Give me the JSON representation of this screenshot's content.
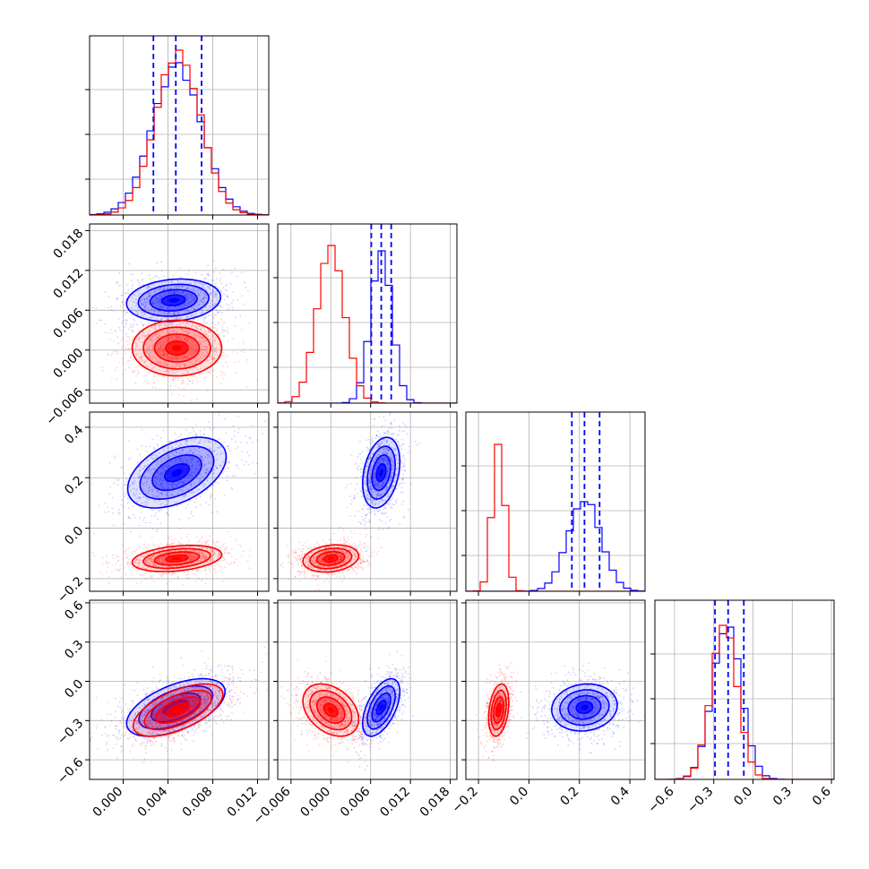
{
  "chart_data": {
    "type": "corner",
    "grid": true,
    "colors": {
      "series_a": "#0000ff",
      "series_b": "#ff0000",
      "quantile_line": "#0000ff"
    },
    "parameters": [
      {
        "range": [
          -0.003,
          0.013
        ],
        "ticks": [
          0.0,
          0.004,
          0.008,
          0.012
        ],
        "tick_labels": [
          "0.000",
          "0.004",
          "0.008",
          "0.012"
        ]
      },
      {
        "range": [
          -0.008,
          0.019
        ],
        "ticks": [
          -0.006,
          0.0,
          0.006,
          0.012,
          0.018
        ],
        "tick_labels": [
          "−0.006",
          "0.000",
          "0.006",
          "0.012",
          "0.018"
        ]
      },
      {
        "range": [
          -0.25,
          0.46
        ],
        "ticks": [
          -0.2,
          0.0,
          0.2,
          0.4
        ],
        "tick_labels": [
          "−0.2",
          "0.0",
          "0.2",
          "0.4"
        ]
      },
      {
        "range": [
          -0.75,
          0.62
        ],
        "ticks": [
          -0.6,
          -0.3,
          0.0,
          0.3,
          0.6
        ],
        "tick_labels": [
          "−0.6",
          "−0.3",
          "0.0",
          "0.3",
          "0.6"
        ]
      }
    ],
    "series": [
      {
        "color": "#0000ff",
        "mean": [
          0.0048,
          0.0076,
          0.22,
          -0.2
        ],
        "std": [
          0.0022,
          0.0016,
          0.065,
          0.11
        ],
        "quantiles": [
          [
            0.0027,
            0.0047,
            0.007
          ],
          [
            0.0061,
            0.0076,
            0.0091
          ],
          [
            0.17,
            0.22,
            0.28
          ],
          [
            -0.29,
            -0.19,
            -0.07
          ]
        ],
        "marginal_peak": [
          0.85,
          0.85,
          0.5,
          0.85
        ]
      },
      {
        "color": "#ff0000",
        "mean": [
          0.0049,
          0.0,
          -0.12,
          -0.22
        ],
        "std": [
          0.002,
          0.0021,
          0.025,
          0.1
        ],
        "marginal_peak": [
          0.92,
          0.88,
          0.82,
          0.86
        ]
      }
    ],
    "pairs": [
      {
        "row": 1,
        "col": 0,
        "series": [
          {
            "cx": 0.0045,
            "cy": 0.0075,
            "sx": 0.0021,
            "sy": 0.0016,
            "rho": 0.15
          },
          {
            "cx": 0.0048,
            "cy": 0.0003,
            "sx": 0.002,
            "sy": 0.0021,
            "rho": 0.0
          }
        ]
      },
      {
        "row": 2,
        "col": 0,
        "series": [
          {
            "cx": 0.0048,
            "cy": 0.22,
            "sx": 0.0022,
            "sy": 0.07,
            "rho": 0.45
          },
          {
            "cx": 0.0048,
            "cy": -0.12,
            "sx": 0.002,
            "sy": 0.026,
            "rho": 0.3
          }
        ]
      },
      {
        "row": 2,
        "col": 1,
        "series": [
          {
            "cx": 0.0076,
            "cy": 0.22,
            "sx": 0.0014,
            "sy": 0.07,
            "rho": 0.3
          },
          {
            "cx": 0.0,
            "cy": -0.12,
            "sx": 0.0021,
            "sy": 0.027,
            "rho": 0.2
          }
        ]
      },
      {
        "row": 3,
        "col": 0,
        "series": [
          {
            "cx": 0.0047,
            "cy": -0.2,
            "sx": 0.0022,
            "sy": 0.11,
            "rho": 0.55
          },
          {
            "cx": 0.0049,
            "cy": -0.22,
            "sx": 0.002,
            "sy": 0.1,
            "rho": 0.6
          }
        ]
      },
      {
        "row": 3,
        "col": 1,
        "series": [
          {
            "cx": 0.0076,
            "cy": -0.2,
            "sx": 0.0014,
            "sy": 0.11,
            "rho": 0.55
          },
          {
            "cx": 0.0,
            "cy": -0.22,
            "sx": 0.0021,
            "sy": 0.1,
            "rho": -0.35
          }
        ]
      },
      {
        "row": 3,
        "col": 2,
        "series": [
          {
            "cx": 0.22,
            "cy": -0.2,
            "sx": 0.065,
            "sy": 0.09,
            "rho": 0.1
          },
          {
            "cx": -0.12,
            "cy": -0.22,
            "sx": 0.02,
            "sy": 0.1,
            "rho": 0.3
          }
        ]
      }
    ]
  }
}
